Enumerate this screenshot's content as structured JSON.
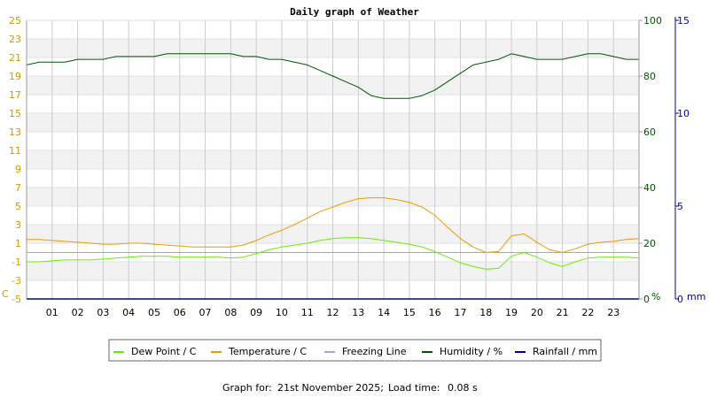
{
  "chart_data": {
    "type": "line",
    "title": "Daily graph of Weather",
    "x_axis": {
      "ticks": [
        "01",
        "02",
        "03",
        "04",
        "05",
        "06",
        "07",
        "08",
        "09",
        "10",
        "11",
        "12",
        "13",
        "14",
        "15",
        "16",
        "17",
        "18",
        "19",
        "20",
        "21",
        "22",
        "23"
      ],
      "range_hours": [
        0,
        24
      ]
    },
    "left_axis": {
      "unit": "C",
      "ylim": [
        -5,
        25
      ],
      "ticks": [
        "-5",
        "-3",
        "-1",
        "1",
        "3",
        "5",
        "7",
        "9",
        "11",
        "13",
        "15",
        "17",
        "19",
        "21",
        "23",
        "25"
      ]
    },
    "right_axis_humidity": {
      "unit": "%",
      "ylim": [
        0,
        100
      ],
      "ticks": [
        "0",
        "20",
        "40",
        "60",
        "80",
        "100"
      ]
    },
    "right_axis_rain": {
      "unit": "mm",
      "ylim": [
        0,
        15
      ],
      "ticks": [
        "0",
        "5",
        "10",
        "15"
      ]
    },
    "grid": true,
    "legend_position": "bottom",
    "series": [
      {
        "name": "Dew Point / C",
        "axis": "left",
        "color": "#66ee00",
        "x": [
          0,
          0.5,
          1,
          1.5,
          2,
          2.5,
          3,
          3.5,
          4,
          4.5,
          5,
          5.5,
          6,
          6.5,
          7,
          7.5,
          8,
          8.5,
          9,
          9.5,
          10,
          10.5,
          11,
          11.5,
          12,
          12.5,
          13,
          13.5,
          14,
          14.5,
          15,
          15.5,
          16,
          16.5,
          17,
          17.5,
          18,
          18.5,
          19,
          19.5,
          20,
          20.5,
          21,
          21.5,
          22,
          22.5,
          23,
          23.5,
          24
        ],
        "y": [
          -1,
          -1,
          -0.9,
          -0.8,
          -0.8,
          -0.8,
          -0.7,
          -0.6,
          -0.5,
          -0.4,
          -0.4,
          -0.4,
          -0.5,
          -0.5,
          -0.5,
          -0.5,
          -0.6,
          -0.5,
          -0.1,
          0.3,
          0.6,
          0.8,
          1,
          1.3,
          1.5,
          1.6,
          1.6,
          1.5,
          1.3,
          1.1,
          0.9,
          0.6,
          0.1,
          -0.5,
          -1.1,
          -1.5,
          -1.8,
          -1.7,
          -0.4,
          0,
          -0.5,
          -1.1,
          -1.5,
          -1,
          -0.6,
          -0.5,
          -0.5,
          -0.5,
          -0.6
        ]
      },
      {
        "name": "Temperature / C",
        "axis": "left",
        "color": "#ee9900",
        "x": [
          0,
          0.5,
          1,
          1.5,
          2,
          2.5,
          3,
          3.5,
          4,
          4.5,
          5,
          5.5,
          6,
          6.5,
          7,
          7.5,
          8,
          8.5,
          9,
          9.5,
          10,
          10.5,
          11,
          11.5,
          12,
          12.5,
          13,
          13.5,
          14,
          14.5,
          15,
          15.5,
          16,
          16.5,
          17,
          17.5,
          18,
          18.5,
          19,
          19.5,
          20,
          20.5,
          21,
          21.5,
          22,
          22.5,
          23,
          23.5,
          24
        ],
        "y": [
          1.4,
          1.4,
          1.3,
          1.2,
          1.1,
          1,
          0.9,
          0.9,
          1,
          1,
          0.9,
          0.8,
          0.7,
          0.6,
          0.6,
          0.6,
          0.6,
          0.8,
          1.3,
          1.9,
          2.4,
          3,
          3.7,
          4.4,
          4.9,
          5.4,
          5.8,
          5.9,
          5.9,
          5.7,
          5.4,
          4.9,
          4,
          2.7,
          1.5,
          0.6,
          0,
          0.1,
          1.8,
          2,
          1.1,
          0.3,
          0,
          0.4,
          0.9,
          1.1,
          1.2,
          1.4,
          1.5
        ]
      },
      {
        "name": "Freezing Line",
        "axis": "left",
        "color": "#99aacc",
        "x": [
          0,
          24
        ],
        "y": [
          0,
          0
        ]
      },
      {
        "name": "Humidity / %",
        "axis": "humidity",
        "color": "#005500",
        "x": [
          0,
          0.5,
          1,
          1.5,
          2,
          2.5,
          3,
          3.5,
          4,
          4.5,
          5,
          5.5,
          6,
          6.5,
          7,
          7.5,
          8,
          8.5,
          9,
          9.5,
          10,
          10.5,
          11,
          11.5,
          12,
          12.5,
          13,
          13.5,
          14,
          14.5,
          15,
          15.5,
          16,
          16.5,
          17,
          17.5,
          18,
          18.5,
          19,
          19.5,
          20,
          20.5,
          21,
          21.5,
          22,
          22.5,
          23,
          23.5,
          24
        ],
        "y": [
          84,
          85,
          85,
          85,
          86,
          86,
          86,
          87,
          87,
          87,
          87,
          88,
          88,
          88,
          88,
          88,
          88,
          87,
          87,
          86,
          86,
          85,
          84,
          82,
          80,
          78,
          76,
          73,
          72,
          72,
          72,
          73,
          75,
          78,
          81,
          84,
          85,
          86,
          88,
          87,
          86,
          86,
          86,
          87,
          88,
          88,
          87,
          86,
          86
        ]
      },
      {
        "name": "Rainfall / mm",
        "axis": "rain",
        "color": "#0000aa",
        "x": [
          0,
          24
        ],
        "y": [
          0,
          0
        ]
      }
    ],
    "footer": {
      "label": "Graph for:",
      "date": "21st November 2025;",
      "load_label": "Load time:",
      "load_time": "0.08 s"
    },
    "colors": {
      "grid_band": "#f2f2f2",
      "grid_line": "#cccccc",
      "x_tick_color": "#000000"
    }
  }
}
